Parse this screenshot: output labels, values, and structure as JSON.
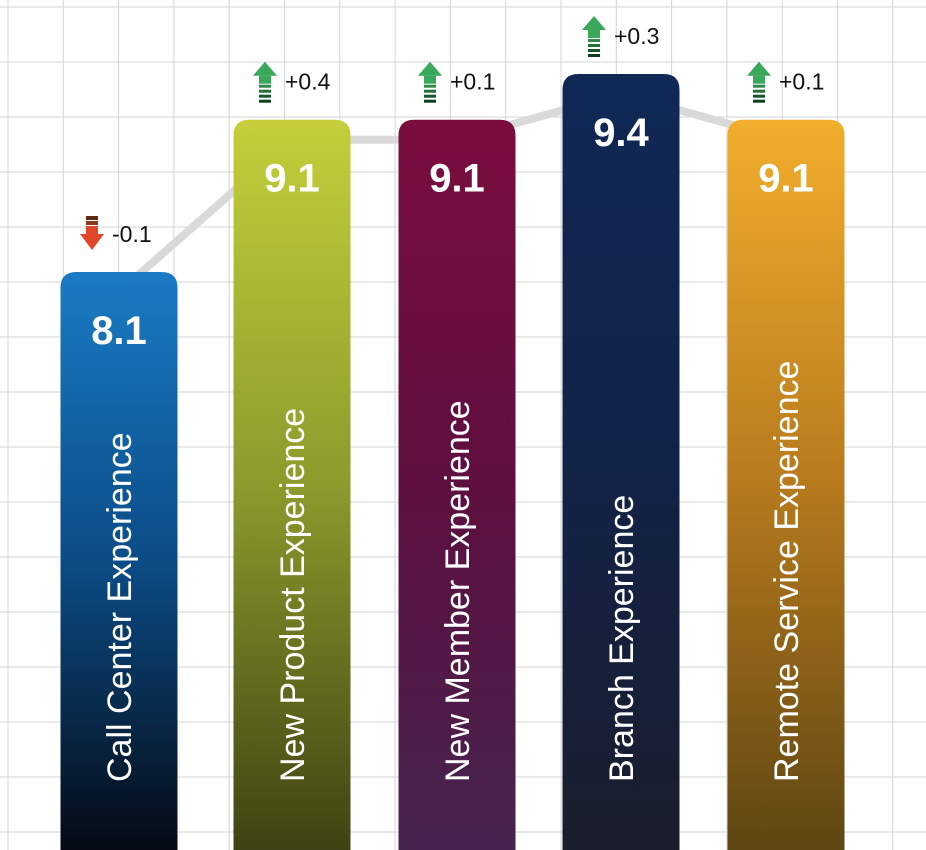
{
  "chart_data": {
    "type": "bar",
    "categories": [
      "Call Center Experience",
      "New Product Experience",
      "New Member Experience",
      "Branch Experience",
      "Remote Service Experience"
    ],
    "values": [
      8.1,
      9.1,
      9.1,
      9.4,
      9.1
    ],
    "value_labels": [
      "8.1",
      "9.1",
      "9.1",
      "9.4",
      "9.1"
    ],
    "changes": [
      {
        "label": "-0.1",
        "direction": "down"
      },
      {
        "label": "+0.4",
        "direction": "up"
      },
      {
        "label": "+0.1",
        "direction": "up"
      },
      {
        "label": "+0.3",
        "direction": "up"
      },
      {
        "label": "+0.1",
        "direction": "up"
      }
    ],
    "ylim": [
      5.6,
      9.6
    ],
    "trend_line": true,
    "grid": true,
    "colors": [
      {
        "top": "#1a7bc4",
        "mid": "#0b4c86",
        "bottom": "#050a14"
      },
      {
        "top": "#c4cf3a",
        "mid": "#8d9a2c",
        "bottom": "#3f4212"
      },
      {
        "top": "#7a0d3e",
        "mid": "#5e0f3f",
        "bottom": "#46234e"
      },
      {
        "top": "#0f2856",
        "mid": "#122348",
        "bottom": "#1a1d2c"
      },
      {
        "top": "#f2ae2c",
        "mid": "#b77a1d",
        "bottom": "#5e4612"
      }
    ],
    "up_color": "#3aa85a",
    "down_color": "#e0472b"
  }
}
